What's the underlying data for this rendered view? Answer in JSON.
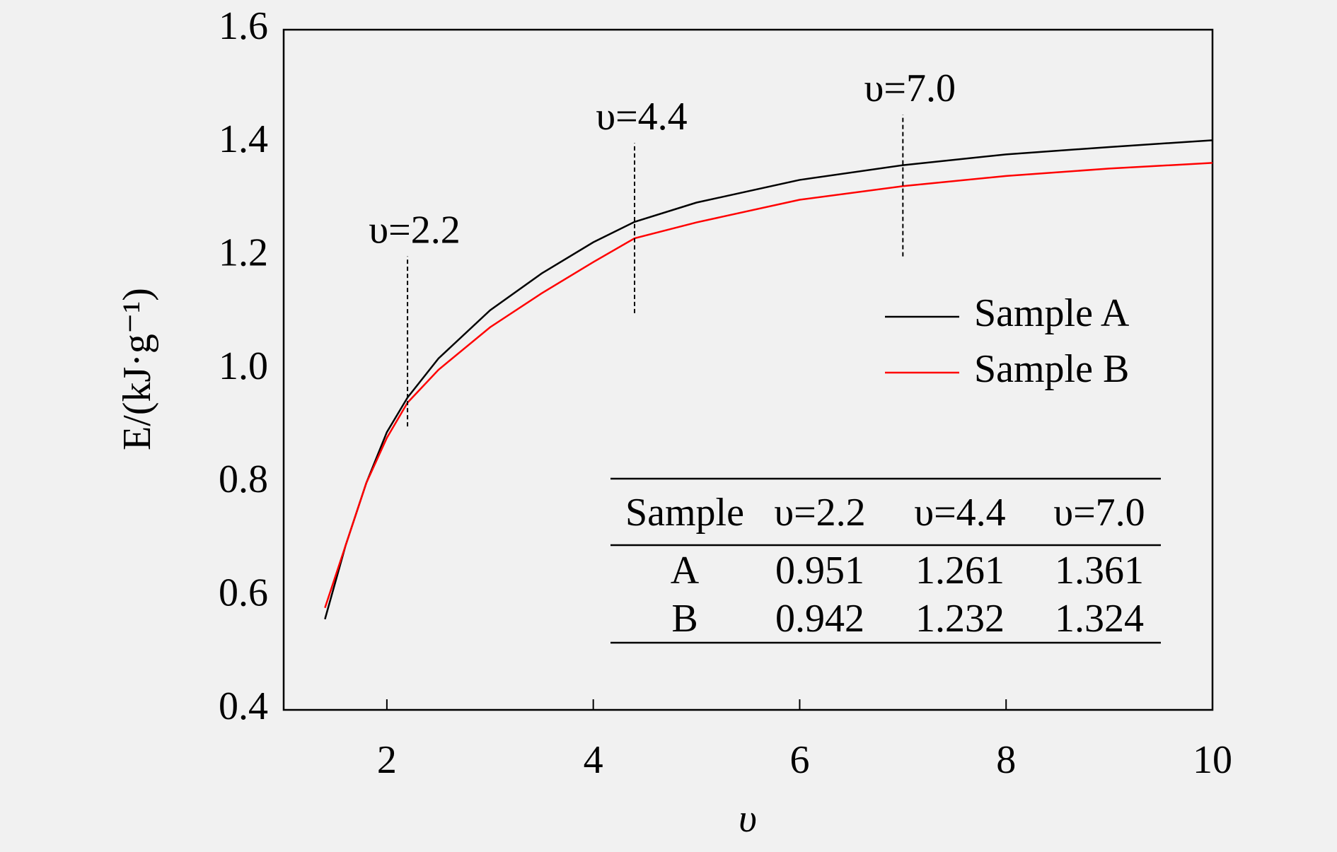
{
  "chart_data": {
    "type": "line",
    "x_label": "υ",
    "y_label": "E/(kJ·g⁻¹)",
    "x": [
      1.4,
      1.6,
      1.8,
      2.0,
      2.2,
      2.5,
      3.0,
      3.5,
      4.0,
      4.4,
      5.0,
      6.0,
      7.0,
      8.0,
      9.0,
      10.0
    ],
    "series": [
      {
        "name": "Sample A",
        "color": "#000000",
        "values": [
          0.56,
          0.69,
          0.8,
          0.89,
          0.951,
          1.02,
          1.105,
          1.17,
          1.225,
          1.261,
          1.295,
          1.335,
          1.361,
          1.38,
          1.393,
          1.405
        ]
      },
      {
        "name": "Sample B",
        "color": "#ff0000",
        "values": [
          0.58,
          0.69,
          0.8,
          0.88,
          0.942,
          1.0,
          1.075,
          1.135,
          1.19,
          1.232,
          1.26,
          1.3,
          1.324,
          1.342,
          1.355,
          1.365
        ]
      }
    ],
    "xlim": [
      1,
      10
    ],
    "ylim": [
      0.4,
      1.6
    ],
    "xticks": [
      2,
      4,
      6,
      8,
      10
    ],
    "yticks": [
      {
        "value": 0.4,
        "label": "0.4"
      },
      {
        "value": 0.6,
        "label": "0.6"
      },
      {
        "value": 0.8,
        "label": "0.8"
      },
      {
        "value": 1.0,
        "label": "1.0"
      },
      {
        "value": 1.2,
        "label": "1.2"
      },
      {
        "value": 1.4,
        "label": "1.4"
      },
      {
        "value": 1.6,
        "label": "1.6"
      }
    ],
    "annotations": [
      {
        "text": "υ=2.2",
        "x": 2.2,
        "y": [
          0.9,
          1.2
        ]
      },
      {
        "text": "υ=4.4",
        "x": 4.4,
        "y": [
          1.1,
          1.4
        ]
      },
      {
        "text": "υ=7.0",
        "x": 7.0,
        "y": [
          1.2,
          1.45
        ]
      }
    ],
    "legend": "upper right",
    "table": {
      "header": [
        "Sample",
        "υ=2.2",
        "υ=4.4",
        "υ=7.0"
      ],
      "rows": [
        [
          "A",
          0.951,
          1.261,
          1.361
        ],
        [
          "B",
          0.942,
          1.232,
          1.324
        ]
      ]
    }
  }
}
